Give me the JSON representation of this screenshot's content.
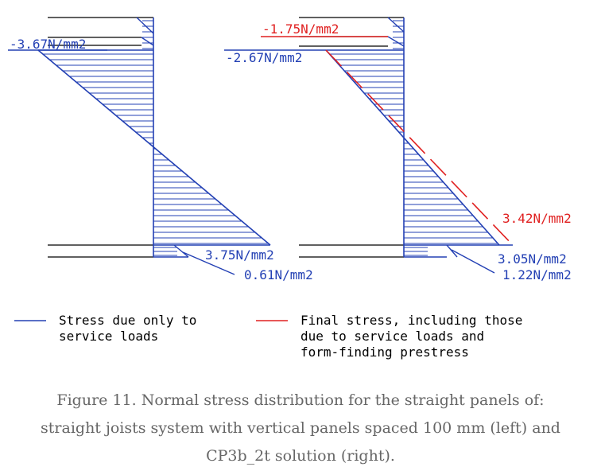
{
  "left_diagram": {
    "top_label": "-3.67N/mm2",
    "bottom_label": "3.75N/mm2",
    "slab_label": "0.61N/mm2"
  },
  "right_diagram": {
    "final_top_label": "-1.75N/mm2",
    "top_label": "-2.67N/mm2",
    "final_bottom_label": "3.42N/mm2",
    "bottom_label": "3.05N/mm2",
    "slab_label": "1.22N/mm2"
  },
  "legend": {
    "items": [
      {
        "line": [
          "Stress due only to",
          "service loads"
        ],
        "color": "#2340b4"
      },
      {
        "line": [
          "Final stress, including those",
          "due to service loads and",
          "form-finding prestress"
        ],
        "color": "#e02020"
      }
    ]
  },
  "caption": {
    "line1": "Figure 11. Normal stress distribution for the straight panels of:",
    "line2": "straight joists system with vertical panels spaced 100 mm (left) and",
    "line3": "CP3b_2t solution (right)."
  },
  "colors": {
    "blue": "#2340b4",
    "red": "#e02020",
    "black": "#000000",
    "caption": "#666666"
  }
}
